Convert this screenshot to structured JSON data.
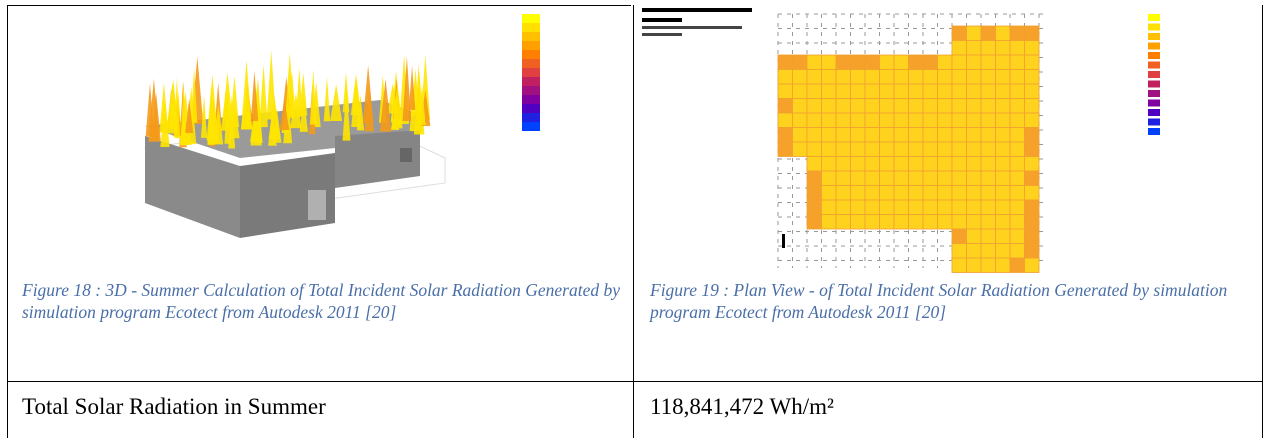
{
  "figures": [
    {
      "caption": "Figure 18 : 3D - Summer Calculation of Total Incident Solar Radiation Generated by simulation program Ecotect from Autodesk 2011 [20]"
    },
    {
      "caption": "Figure 19 : Plan View - of Total Incident Solar Radiation Generated by simulation program Ecotect from Autodesk 2011 [20]"
    }
  ],
  "table": {
    "rows": [
      [
        "Total Solar Radiation in Summer",
        "118,841,472 Wh/m²"
      ]
    ]
  }
}
